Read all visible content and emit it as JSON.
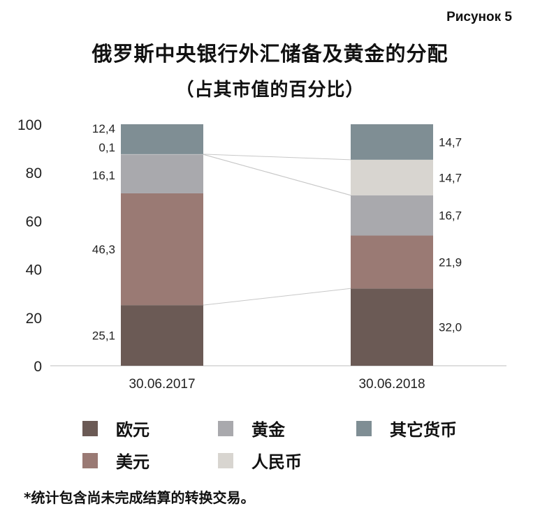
{
  "figure_label": "Рисунок 5",
  "title": "俄罗斯中央银行外汇储备及黄金的分配",
  "subtitle": "（占其市值的百分比）",
  "footnote": "*统计包含尚未完成结算的转换交易。",
  "legend": [
    {
      "key": "eur",
      "label": "欧元",
      "color": "#6b5a55"
    },
    {
      "key": "gold",
      "label": "黄金",
      "color": "#a9a9ad"
    },
    {
      "key": "other",
      "label": "其它货币",
      "color": "#7f8e94"
    },
    {
      "key": "usd",
      "label": "美元",
      "color": "#9a7a74"
    },
    {
      "key": "cny",
      "label": "人民币",
      "color": "#d8d5d0"
    }
  ],
  "chart_data": {
    "type": "bar",
    "stacked": true,
    "categories": [
      "30.06.2017",
      "30.06.2018"
    ],
    "ylim": [
      0,
      100
    ],
    "yticks": [
      0,
      20,
      40,
      60,
      80,
      100
    ],
    "grid": false,
    "connector_lines": true,
    "series": [
      {
        "key": "eur",
        "name": "欧元",
        "values": [
          25.1,
          32.0
        ],
        "labels": [
          "25,1",
          "32,0"
        ],
        "color": "#6b5a55"
      },
      {
        "key": "usd",
        "name": "美元",
        "values": [
          46.3,
          21.9
        ],
        "labels": [
          "46,3",
          "21,9"
        ],
        "color": "#9a7a74"
      },
      {
        "key": "gold",
        "name": "黄金",
        "values": [
          16.1,
          16.7
        ],
        "labels": [
          "16,1",
          "16,7"
        ],
        "color": "#a9a9ad"
      },
      {
        "key": "cny",
        "name": "人民币",
        "values": [
          0.1,
          14.7
        ],
        "labels": [
          "0,1",
          "14,7"
        ],
        "color": "#d8d5d0"
      },
      {
        "key": "other",
        "name": "其它货币",
        "values": [
          12.4,
          14.7
        ],
        "labels": [
          "12,4",
          "14,7"
        ],
        "color": "#7f8e94"
      }
    ]
  }
}
